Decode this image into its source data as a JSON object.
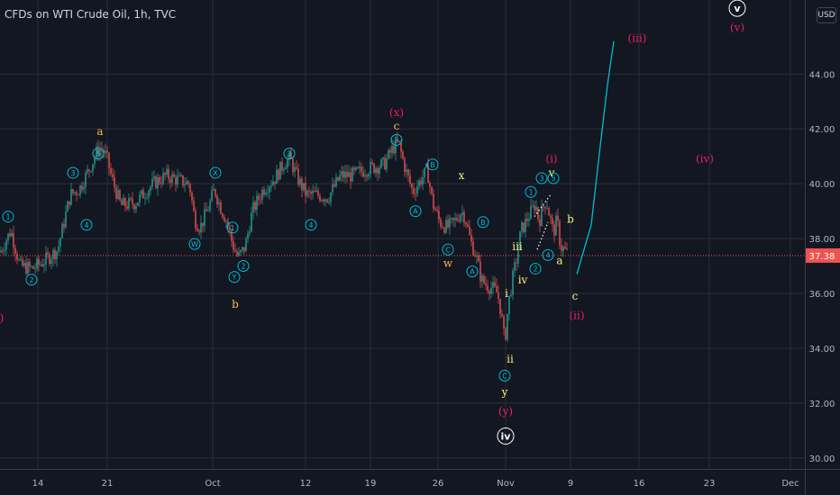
{
  "header": {
    "title": "CFDs on WTI Crude Oil, 1h, TVC",
    "currency": "USD"
  },
  "colors": {
    "bg": "#131722",
    "grid": "#2a2e39",
    "up": "#26a69a",
    "down": "#ef5350",
    "text": "#b2b5be",
    "wave_cyan": "#00bcd4",
    "wave_orange": "#ffb74d",
    "wave_yellow": "#fff176",
    "wave_red": "#e91e63",
    "wave_white": "#ffffff",
    "price_badge": "#ef5350"
  },
  "chart_data": {
    "type": "candlestick",
    "title": "CFDs on WTI Crude Oil, 1h, TVC",
    "ylim": [
      29.6,
      46.7
    ],
    "y_ticks": [
      "30.00",
      "32.00",
      "34.00",
      "36.00",
      "38.00",
      "40.00",
      "42.00",
      "44.00"
    ],
    "x_ticks": [
      "14",
      "21",
      "Oct",
      "12",
      "19",
      "26",
      "Nov",
      "9",
      "16",
      "23",
      "Dec"
    ],
    "last_price": "37.38",
    "last_price_value": 37.38,
    "path": [
      [
        0,
        37.5
      ],
      [
        12,
        38.3
      ],
      [
        22,
        37.0
      ],
      [
        36,
        36.9
      ],
      [
        50,
        37.2
      ],
      [
        64,
        37.6
      ],
      [
        78,
        39.6
      ],
      [
        88,
        39.8
      ],
      [
        100,
        40.6
      ],
      [
        108,
        41.2
      ],
      [
        112,
        41.3
      ],
      [
        118,
        41.0
      ],
      [
        124,
        40.2
      ],
      [
        134,
        39.2
      ],
      [
        150,
        39.3
      ],
      [
        170,
        40.0
      ],
      [
        184,
        40.3
      ],
      [
        200,
        40.1
      ],
      [
        210,
        40.0
      ],
      [
        216,
        38.7
      ],
      [
        222,
        38.4
      ],
      [
        232,
        39.2
      ],
      [
        238,
        39.8
      ],
      [
        244,
        39.2
      ],
      [
        252,
        38.6
      ],
      [
        258,
        37.8
      ],
      [
        264,
        37.3
      ],
      [
        272,
        37.7
      ],
      [
        280,
        39.0
      ],
      [
        292,
        39.8
      ],
      [
        305,
        40.2
      ],
      [
        316,
        40.8
      ],
      [
        322,
        40.9
      ],
      [
        330,
        40.2
      ],
      [
        340,
        39.6
      ],
      [
        350,
        39.6
      ],
      [
        364,
        39.5
      ],
      [
        378,
        40.3
      ],
      [
        390,
        40.3
      ],
      [
        404,
        40.5
      ],
      [
        414,
        40.6
      ],
      [
        426,
        40.7
      ],
      [
        436,
        41.3
      ],
      [
        442,
        41.5
      ],
      [
        450,
        40.5
      ],
      [
        458,
        39.7
      ],
      [
        464,
        40.0
      ],
      [
        474,
        40.5
      ],
      [
        480,
        39.3
      ],
      [
        488,
        38.6
      ],
      [
        496,
        38.4
      ],
      [
        504,
        38.6
      ],
      [
        512,
        39.0
      ],
      [
        516,
        38.8
      ],
      [
        522,
        37.9
      ],
      [
        528,
        37.4
      ],
      [
        534,
        36.5
      ],
      [
        540,
        36.3
      ],
      [
        546,
        36.2
      ],
      [
        552,
        36.0
      ],
      [
        556,
        35.3
      ],
      [
        560,
        34.2
      ],
      [
        564,
        35.6
      ],
      [
        568,
        36.4
      ],
      [
        574,
        37.4
      ],
      [
        578,
        38.3
      ],
      [
        582,
        38.5
      ],
      [
        586,
        38.8
      ],
      [
        590,
        39.0
      ],
      [
        594,
        39.3
      ],
      [
        598,
        38.6
      ],
      [
        602,
        39.1
      ],
      [
        606,
        39.4
      ],
      [
        610,
        38.8
      ],
      [
        614,
        38.2
      ],
      [
        618,
        38.7
      ],
      [
        622,
        37.7
      ],
      [
        626,
        37.6
      ],
      [
        630,
        37.4
      ]
    ],
    "projection": [
      [
        640,
        36.7
      ],
      [
        656,
        38.5
      ],
      [
        665,
        41.1
      ],
      [
        674,
        43.6
      ],
      [
        681,
        45.2
      ]
    ],
    "dotted_channel": [
      [
        [
          593,
          38.8
        ],
        [
          611,
          39.6
        ]
      ],
      [
        [
          596,
          37.6
        ],
        [
          608,
          38.6
        ]
      ]
    ],
    "labels": [
      {
        "t": "a",
        "x": 111,
        "y": 41.9,
        "c": "orange"
      },
      {
        "t": "5",
        "x": 109,
        "y": 41.1,
        "c": "cyan",
        "circle": true
      },
      {
        "t": "3",
        "x": 81,
        "y": 40.4,
        "c": "cyan",
        "circle": true
      },
      {
        "t": "4",
        "x": 96,
        "y": 38.5,
        "c": "cyan",
        "circle": true
      },
      {
        "t": "1",
        "x": 9,
        "y": 38.8,
        "c": "cyan",
        "circle": true
      },
      {
        "t": "2",
        "x": 35,
        "y": 36.5,
        "c": "cyan",
        "circle": true
      },
      {
        "t": ")",
        "x": 2,
        "y": 35.1,
        "c": "red"
      },
      {
        "t": "X",
        "x": 239,
        "y": 40.4,
        "c": "cyan",
        "circle": true
      },
      {
        "t": "W",
        "x": 216,
        "y": 37.8,
        "c": "cyan",
        "circle": true
      },
      {
        "t": "1",
        "x": 258,
        "y": 38.4,
        "c": "cyan",
        "circle": true
      },
      {
        "t": "2",
        "x": 270,
        "y": 37.0,
        "c": "cyan",
        "circle": true
      },
      {
        "t": "Y",
        "x": 260,
        "y": 36.6,
        "c": "cyan",
        "circle": true
      },
      {
        "t": "b",
        "x": 261,
        "y": 35.6,
        "c": "orange"
      },
      {
        "t": "3",
        "x": 321,
        "y": 41.1,
        "c": "cyan",
        "circle": true
      },
      {
        "t": "4",
        "x": 345,
        "y": 38.5,
        "c": "cyan",
        "circle": true
      },
      {
        "t": "(x)",
        "x": 440,
        "y": 42.6,
        "c": "red"
      },
      {
        "t": "c",
        "x": 440,
        "y": 42.1,
        "c": "orange"
      },
      {
        "t": "5",
        "x": 440,
        "y": 41.6,
        "c": "cyan",
        "circle": true
      },
      {
        "t": "B",
        "x": 480,
        "y": 40.7,
        "c": "cyan",
        "circle": true
      },
      {
        "t": "A",
        "x": 461,
        "y": 39.0,
        "c": "cyan",
        "circle": true
      },
      {
        "t": "x",
        "x": 512,
        "y": 40.3,
        "c": "yellow"
      },
      {
        "t": "B",
        "x": 536,
        "y": 38.6,
        "c": "cyan",
        "circle": true
      },
      {
        "t": "C",
        "x": 497,
        "y": 37.6,
        "c": "cyan",
        "circle": true
      },
      {
        "t": "w",
        "x": 497,
        "y": 37.1,
        "c": "orange"
      },
      {
        "t": "A",
        "x": 524,
        "y": 36.8,
        "c": "cyan",
        "circle": true
      },
      {
        "t": "i",
        "x": 562,
        "y": 36.0,
        "c": "yellow"
      },
      {
        "t": "iii",
        "x": 574,
        "y": 37.7,
        "c": "yellow"
      },
      {
        "t": "iv",
        "x": 580,
        "y": 36.5,
        "c": "yellow"
      },
      {
        "t": "ii",
        "x": 566,
        "y": 33.6,
        "c": "yellow"
      },
      {
        "t": "C",
        "x": 560,
        "y": 33.0,
        "c": "cyan",
        "circle": true
      },
      {
        "t": "y",
        "x": 560,
        "y": 32.4,
        "c": "yellow"
      },
      {
        "t": "(y)",
        "x": 561,
        "y": 31.7,
        "c": "red"
      },
      {
        "t": "iv",
        "x": 561,
        "y": 30.8,
        "c": "white",
        "circle": true,
        "big": true
      },
      {
        "t": "(i)",
        "x": 612,
        "y": 40.9,
        "c": "red"
      },
      {
        "t": "v",
        "x": 612,
        "y": 40.4,
        "c": "yellow"
      },
      {
        "t": "1",
        "x": 589,
        "y": 39.7,
        "c": "cyan",
        "circle": true
      },
      {
        "t": "3",
        "x": 601,
        "y": 40.2,
        "c": "cyan",
        "circle": true
      },
      {
        "t": "5",
        "x": 614,
        "y": 40.2,
        "c": "cyan",
        "circle": true
      },
      {
        "t": "4",
        "x": 608,
        "y": 37.4,
        "c": "cyan",
        "circle": true
      },
      {
        "t": "2",
        "x": 594,
        "y": 36.9,
        "c": "cyan",
        "circle": true
      },
      {
        "t": "b",
        "x": 633,
        "y": 38.7,
        "c": "yellow"
      },
      {
        "t": "a",
        "x": 621,
        "y": 37.2,
        "c": "yellow"
      },
      {
        "t": "c",
        "x": 638,
        "y": 35.9,
        "c": "yellow"
      },
      {
        "t": "(ii)",
        "x": 640,
        "y": 35.2,
        "c": "red"
      },
      {
        "t": "(iii)",
        "x": 707,
        "y": 45.3,
        "c": "red"
      },
      {
        "t": "(iv)",
        "x": 782,
        "y": 40.9,
        "c": "red"
      },
      {
        "t": "v",
        "x": 818,
        "y": 46.4,
        "c": "white",
        "circle": true,
        "big": true
      },
      {
        "t": "(v)",
        "x": 818,
        "y": 45.7,
        "c": "red"
      }
    ]
  }
}
